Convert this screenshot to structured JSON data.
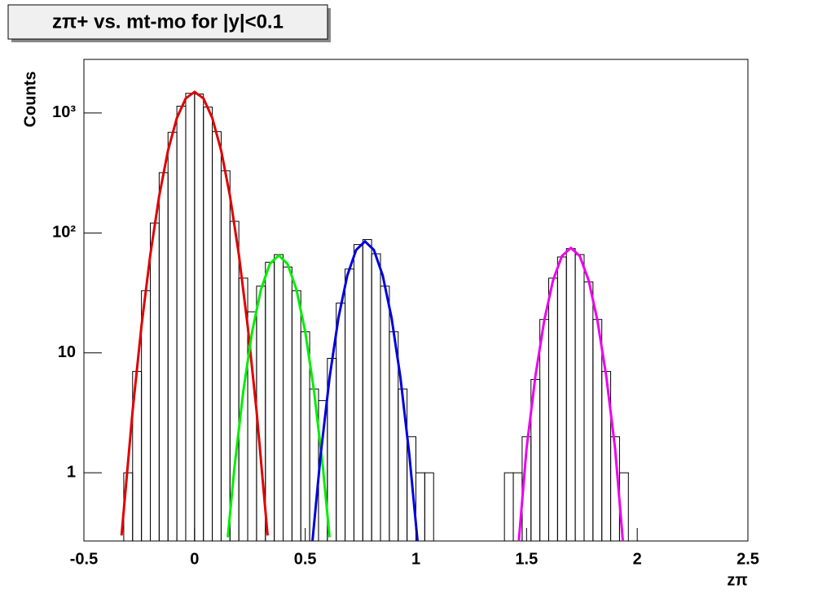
{
  "chart_data": {
    "type": "histogram",
    "title": "zπ+ vs. mt-mo for |y|<0.1",
    "xlabel": "zπ",
    "ylabel": "Counts",
    "log_y": true,
    "color": "#000000",
    "bins": [
      -0.36,
      -0.32,
      -0.28,
      -0.24,
      -0.2,
      -0.16,
      -0.12,
      -0.08,
      -0.04,
      0,
      0.04,
      0.08,
      0.12,
      0.16,
      0.2,
      0.24,
      0.28,
      0.32,
      0.36,
      0.4,
      0.44,
      0.48,
      0.52,
      0.56,
      0.6,
      0.64,
      0.68,
      0.72,
      0.76,
      0.8,
      0.84,
      0.88,
      0.92,
      0.96,
      1.0,
      1.04,
      1.08,
      1.12,
      1.16,
      1.2,
      1.24,
      1.28,
      1.32,
      1.36,
      1.4,
      1.44,
      1.48,
      1.52,
      1.56,
      1.6,
      1.64,
      1.68,
      1.72,
      1.76,
      1.8,
      1.84,
      1.88,
      1.92,
      1.96,
      2.0,
      2.04
    ],
    "values": [
      0,
      1,
      7,
      33,
      121,
      318,
      690,
      1140,
      1460,
      1440,
      1120,
      700,
      330,
      125,
      42,
      22,
      36,
      57,
      66,
      52,
      33,
      15,
      5,
      4,
      9,
      26,
      50,
      80,
      88,
      67,
      36,
      15,
      5,
      2,
      1,
      1,
      0,
      0,
      0,
      0,
      0,
      0,
      0,
      0,
      1,
      1,
      2,
      6,
      19,
      42,
      63,
      74,
      66,
      39,
      19,
      7,
      2,
      1,
      0,
      0
    ],
    "fits": [
      {
        "color": "#e00000",
        "x": [
          -0.33,
          -0.28,
          -0.24,
          -0.2,
          -0.16,
          -0.12,
          -0.08,
          -0.04,
          0,
          0.04,
          0.08,
          0.12,
          0.16,
          0.2,
          0.24,
          0.28,
          0.33
        ],
        "values": [
          0.3,
          3.28,
          16.7,
          65.9,
          203,
          487,
          910,
          1324,
          1500,
          1324,
          910,
          487,
          203,
          65.9,
          16.7,
          3.28,
          0.3
        ]
      },
      {
        "color": "#00ee00",
        "x": [
          0.15,
          0.18,
          0.22,
          0.26,
          0.3,
          0.34,
          0.38,
          0.42,
          0.46,
          0.5,
          0.54,
          0.58,
          0.61
        ],
        "values": [
          0.29,
          1.1,
          4.77,
          15.0,
          33.8,
          55.2,
          65,
          55.2,
          33.8,
          15.0,
          4.77,
          1.1,
          0.29
        ]
      },
      {
        "color": "#0000e0",
        "x": [
          0.53,
          0.57,
          0.61,
          0.65,
          0.69,
          0.73,
          0.77,
          0.81,
          0.85,
          0.89,
          0.93,
          0.97,
          1.01
        ],
        "values": [
          0.24,
          1.43,
          6.24,
          19.6,
          44.2,
          72.2,
          85,
          72.2,
          44.2,
          19.6,
          6.24,
          1.43,
          0.24
        ]
      },
      {
        "color": "#ee00ee",
        "x": [
          1.46,
          1.5,
          1.54,
          1.58,
          1.62,
          1.66,
          1.7,
          1.74,
          1.78,
          1.82,
          1.86,
          1.9,
          1.94
        ],
        "values": [
          0.21,
          1.6,
          6.4,
          18.7,
          40.5,
          64.3,
          75,
          64.3,
          40.5,
          18.7,
          6.4,
          1.6,
          0.21
        ]
      }
    ],
    "xlim": [
      -0.5,
      2.5
    ],
    "ylim": [
      0.27,
      2800
    ],
    "xticks": [
      -0.5,
      0,
      0.5,
      1,
      1.5,
      2,
      2.5
    ],
    "yticks": [
      1,
      10,
      {
        "value": 100,
        "label": "10²"
      },
      {
        "value": 1000,
        "label": "10³"
      }
    ]
  }
}
